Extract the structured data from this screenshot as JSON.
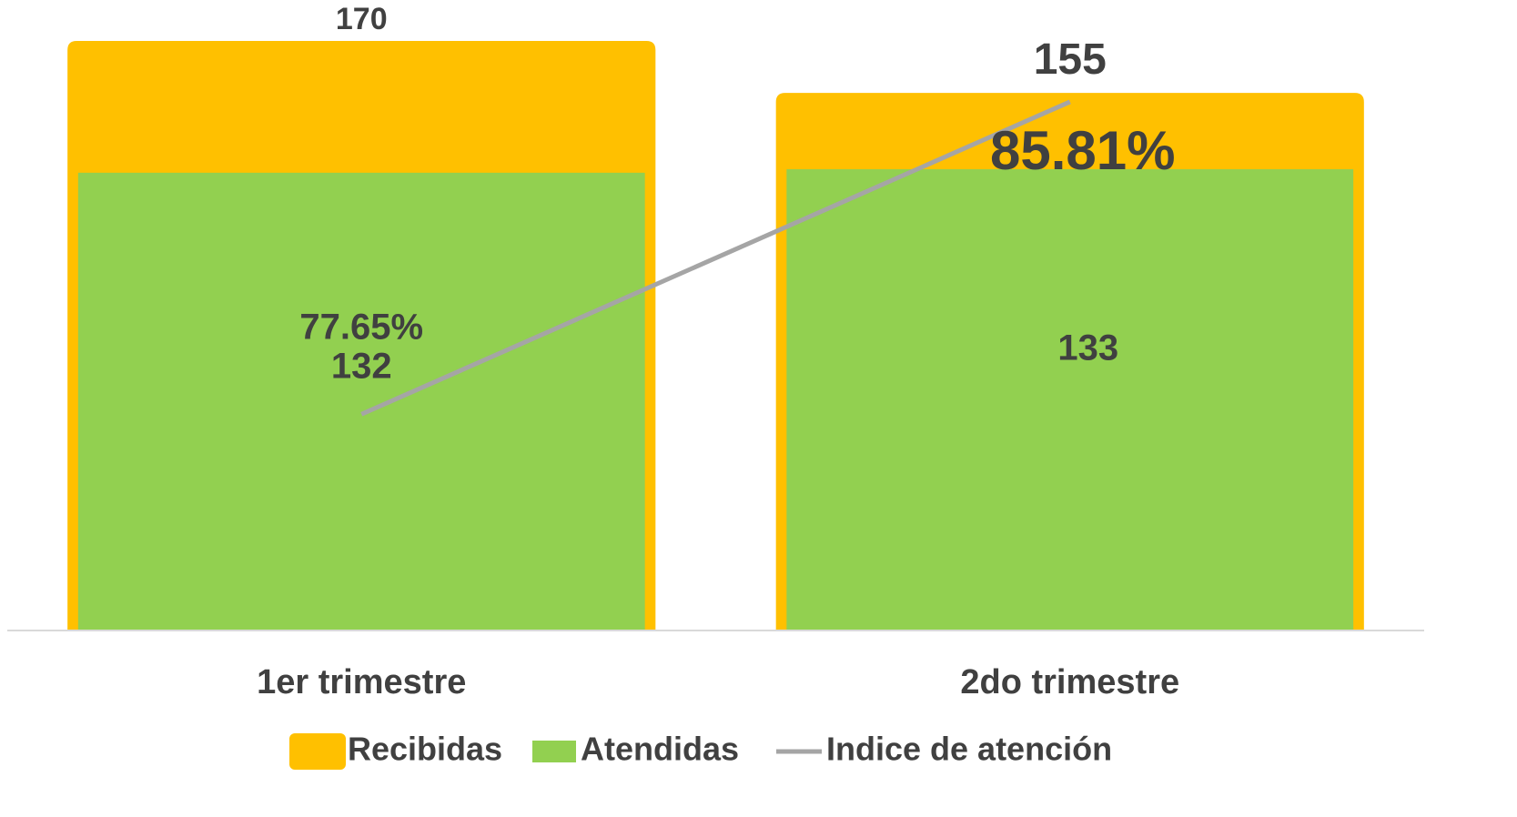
{
  "chart_data": {
    "type": "bar",
    "categories": [
      "1er trimestre",
      "2do trimestre"
    ],
    "series": [
      {
        "name": "Recibidas",
        "color": "#ffc000",
        "values": [
          170,
          155
        ]
      },
      {
        "name": "Atendidas",
        "color": "#92d050",
        "values": [
          132,
          133
        ]
      },
      {
        "name": "Indice de atención",
        "color": "#a5a5a5",
        "type": "line",
        "axis": "y2",
        "values": [
          77.65,
          85.81
        ],
        "value_labels": [
          "77.65%",
          "85.81%"
        ]
      }
    ],
    "ylim": [
      0,
      170
    ],
    "y2lim": [
      72,
      87.4
    ],
    "grid": false,
    "legend": "bottom"
  }
}
